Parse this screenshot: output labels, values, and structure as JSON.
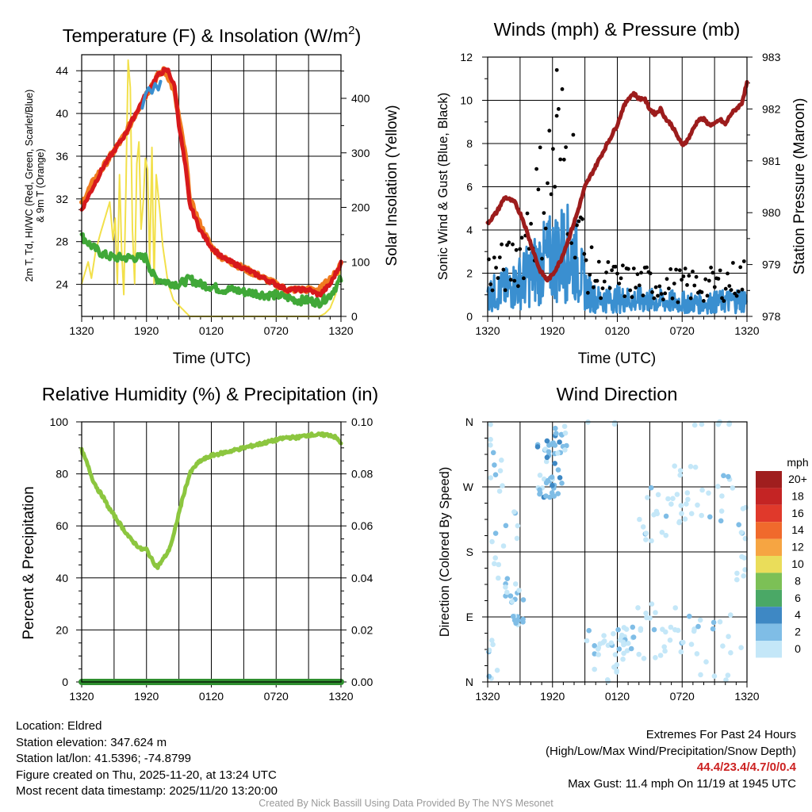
{
  "colors": {
    "temp_2m": "#d7191c",
    "temp_9m": "#f07c20",
    "dewpoint": "#40a838",
    "windchill": "#3a8fd0",
    "insolation": "#f2e04a",
    "pressure": "#9c1c1c",
    "gust": "#000000",
    "sonic_wind": "#3a8fd0",
    "humidity": "#8cc63f",
    "precip": "#2f8f2f"
  },
  "x_ticks": [
    "1320",
    "1920",
    "0120",
    "0720",
    "1320"
  ],
  "chart_data": [
    {
      "id": "temperature",
      "type": "line",
      "title": "Temperature (F) & Insolation (W/m²)",
      "title_main": "Temperature (F) & Insolation (W/m",
      "title_sup": "2",
      "title_end": ")",
      "xlabel": "Time (UTC)",
      "ylabel_left": "2m T, Td, HI/WC (Red, Green, Scarlet/Blue)",
      "ylabel_left_2": "& 9m T (Orange)",
      "ylabel_right": "Solar Insolation (Yellow)",
      "x_range_hours": [
        0,
        24
      ],
      "ylim_left": [
        21,
        45.5
      ],
      "yticks_left": [
        24,
        28,
        32,
        36,
        40,
        44
      ],
      "ylim_right": [
        0,
        480
      ],
      "yticks_right": [
        0,
        100,
        200,
        300,
        400
      ],
      "series": [
        {
          "name": "9m T",
          "axis": "left",
          "color_key": "temp_9m",
          "x": [
            0,
            1,
            2,
            3,
            4,
            5,
            5.8,
            6.4,
            7,
            7.6,
            8,
            8.6,
            9,
            9.6,
            10,
            11,
            12,
            13,
            14,
            15,
            16,
            17,
            18,
            19,
            20,
            21,
            22,
            23,
            23.5,
            24
          ],
          "values": [
            31.5,
            33.5,
            35,
            36.5,
            38,
            40,
            41.5,
            42.5,
            43.5,
            44,
            43.5,
            42,
            39.5,
            36,
            32,
            29.5,
            27.5,
            26.5,
            26,
            25.5,
            25,
            24.5,
            24,
            23.5,
            23.5,
            23.5,
            23.5,
            24.5,
            25,
            26
          ]
        },
        {
          "name": "2m T",
          "axis": "left",
          "color_key": "temp_2m",
          "x": [
            0,
            1,
            2,
            3,
            4,
            5,
            5.8,
            6.4,
            7,
            7.6,
            8,
            8.6,
            9,
            9.6,
            10,
            11,
            12,
            13,
            14,
            15,
            16,
            17,
            18,
            19,
            20,
            21,
            22,
            23,
            23.5,
            24
          ],
          "values": [
            31,
            33,
            35,
            36.5,
            38,
            40,
            41.5,
            42.5,
            43.5,
            44,
            44,
            42.5,
            39,
            35,
            31.5,
            29,
            27.5,
            26.5,
            26,
            25.5,
            25,
            24.5,
            24,
            23.5,
            23.5,
            23.5,
            23,
            24,
            25,
            26
          ]
        },
        {
          "name": "Td",
          "axis": "left",
          "color_key": "dewpoint",
          "x": [
            0,
            1,
            2,
            3,
            4,
            5,
            6,
            6.5,
            7,
            8,
            9,
            10,
            11,
            12,
            13,
            14,
            15,
            16,
            17,
            18,
            19,
            20,
            21,
            22,
            23,
            24
          ],
          "values": [
            28.5,
            27.5,
            26.8,
            26.5,
            26.5,
            26.5,
            26.5,
            25,
            24.5,
            24.2,
            24,
            24.5,
            24,
            23.8,
            23.5,
            23.5,
            23.3,
            23.2,
            23,
            23,
            22.8,
            22.5,
            22.5,
            22.3,
            23,
            24.5
          ]
        },
        {
          "name": "WC",
          "axis": "left",
          "color_key": "windchill",
          "x": [
            5.6,
            5.9,
            6.2,
            6.5,
            6.8,
            7.1,
            7.3
          ],
          "values": [
            40.5,
            41.8,
            42.4,
            41.9,
            42.8,
            42.2,
            43
          ]
        },
        {
          "name": "Insolation",
          "axis": "right",
          "color_key": "insolation",
          "x": [
            0,
            0.3,
            0.6,
            0.9,
            1.3,
            1.7,
            2,
            2.3,
            2.6,
            2.9,
            3.1,
            3.3,
            3.5,
            3.7,
            3.9,
            4.1,
            4.3,
            4.5,
            4.7,
            4.9,
            5.1,
            5.3,
            5.5,
            5.7,
            5.9,
            6.1,
            6.3,
            6.5,
            6.7,
            6.9,
            7.2,
            7.5,
            8,
            8.5,
            9,
            10,
            12,
            16,
            20,
            22,
            22.5,
            23,
            23.5,
            23.8,
            24
          ],
          "values": [
            60,
            80,
            100,
            70,
            120,
            150,
            170,
            190,
            210,
            140,
            180,
            60,
            260,
            120,
            40,
            240,
            470,
            420,
            160,
            60,
            280,
            320,
            160,
            210,
            290,
            270,
            90,
            310,
            60,
            260,
            200,
            130,
            60,
            30,
            20,
            0,
            0,
            0,
            0,
            0,
            5,
            15,
            40,
            70,
            90
          ]
        }
      ]
    },
    {
      "id": "winds",
      "type": "line",
      "title": "Winds (mph) & Pressure (mb)",
      "xlabel": "Time (UTC)",
      "ylabel_left": "Sonic Wind & Gust (Blue, Black)",
      "ylabel_right": "Station Pressure (Maroon)",
      "x_range_hours": [
        0,
        24
      ],
      "ylim_left": [
        0,
        12
      ],
      "yticks_left": [
        0,
        2,
        4,
        6,
        8,
        10,
        12
      ],
      "ylim_right": [
        978,
        983
      ],
      "yticks_right": [
        978,
        979,
        980,
        981,
        982,
        983
      ],
      "max_gust": 11.4,
      "series": [
        {
          "name": "Station Pressure",
          "axis": "right",
          "color_key": "pressure",
          "x": [
            0,
            0.8,
            1.6,
            2.5,
            3.2,
            4,
            4.8,
            5.5,
            6,
            6.8,
            7.5,
            8.3,
            9,
            10,
            11,
            12,
            12.5,
            13,
            13.5,
            14,
            14.5,
            15,
            15.5,
            16,
            16.5,
            17,
            17.5,
            18,
            18.5,
            19,
            19.5,
            20,
            20.5,
            21,
            21.5,
            22,
            22.5,
            23,
            23.5,
            24
          ],
          "values": [
            979.8,
            980,
            980.3,
            980.2,
            979.9,
            979.4,
            978.9,
            978.7,
            978.8,
            979.1,
            979.5,
            980,
            980.5,
            980.9,
            981.3,
            981.7,
            982,
            982.2,
            982.3,
            982.2,
            982.2,
            982,
            981.9,
            982,
            981.8,
            981.7,
            981.5,
            981.3,
            981.4,
            981.6,
            981.8,
            981.8,
            981.7,
            981.7,
            981.8,
            981.7,
            981.9,
            982,
            982.1,
            982.5
          ]
        },
        {
          "name": "Sonic Wind",
          "axis": "left",
          "color_key": "sonic_wind",
          "type": "line"
        },
        {
          "name": "Gust",
          "axis": "left",
          "color_key": "gust",
          "type": "scatter"
        }
      ]
    },
    {
      "id": "humidity",
      "type": "line",
      "title": "Relative Humidity (%) & Precipitation (in)",
      "ylabel_left": "Percent & Precipitation",
      "x_range_hours": [
        0,
        24
      ],
      "ylim_left": [
        0,
        100
      ],
      "yticks_left": [
        0,
        20,
        40,
        60,
        80,
        100
      ],
      "ylim_right": [
        0,
        0.1
      ],
      "yticks_right": [
        "0.00",
        "0.02",
        "0.04",
        "0.06",
        "0.08",
        "0.10"
      ],
      "series": [
        {
          "name": "Relative Humidity",
          "axis": "left",
          "color_key": "humidity",
          "x": [
            0,
            0.5,
            1,
            1.5,
            2,
            2.5,
            3,
            3.5,
            4,
            4.5,
            5,
            5.5,
            6,
            6.5,
            7,
            7.5,
            8,
            8.5,
            9,
            9.5,
            10,
            10.5,
            11,
            12,
            13,
            14,
            15,
            16,
            17,
            18,
            19,
            20,
            21,
            22,
            23,
            23.5,
            24
          ],
          "values": [
            89,
            84,
            78,
            74,
            71,
            67,
            64,
            61,
            58,
            55,
            53,
            51,
            51,
            47,
            44,
            47,
            50,
            56,
            65,
            73,
            80,
            83,
            85,
            87,
            88,
            89,
            90,
            91,
            92,
            93,
            94,
            94,
            95,
            95,
            95,
            94,
            92
          ]
        },
        {
          "name": "Precipitation",
          "axis": "right",
          "color_key": "precip",
          "x": [
            0,
            24
          ],
          "values": [
            0,
            0
          ]
        }
      ]
    },
    {
      "id": "wind_direction",
      "type": "scatter",
      "title": "Wind Direction",
      "ylabel_left": "Direction (Colored By Speed)",
      "x_range_hours": [
        0,
        24
      ],
      "ylim_left": [
        0,
        360
      ],
      "yticks_labels": [
        "N",
        "E",
        "S",
        "W",
        "N"
      ],
      "legend": {
        "title": "mph",
        "labels": [
          "20+",
          "18",
          "16",
          "14",
          "12",
          "10",
          "8",
          "6",
          "4",
          "2",
          "0"
        ],
        "colors": [
          "#a01e1e",
          "#c42424",
          "#e0392b",
          "#f06a2c",
          "#f6a542",
          "#eadd5a",
          "#7cc056",
          "#4aa866",
          "#3e88c4",
          "#7fbde6",
          "#c4e7f8"
        ]
      }
    }
  ],
  "info": {
    "location": "Location: Eldred",
    "elevation": "Station elevation: 347.624 m",
    "latlon": "Station lat/lon: 41.5396; -74.8799",
    "created": "Figure created on Thu, 2025-11-20, at 13:24 UTC",
    "recent": "Most recent data timestamp: 2025/11/20 13:20:00"
  },
  "extremes": {
    "title": "Extremes For Past 24 Hours",
    "legend": "(High/Low/Max Wind/Precipitation/Snow Depth)",
    "values": "44.4/23.4/4.7/0/0.4",
    "max_gust": "Max Gust: 11.4 mph On 11/19 at 1945 UTC"
  },
  "credit": "Created By Nick Bassill Using Data Provided By The NYS Mesonet"
}
